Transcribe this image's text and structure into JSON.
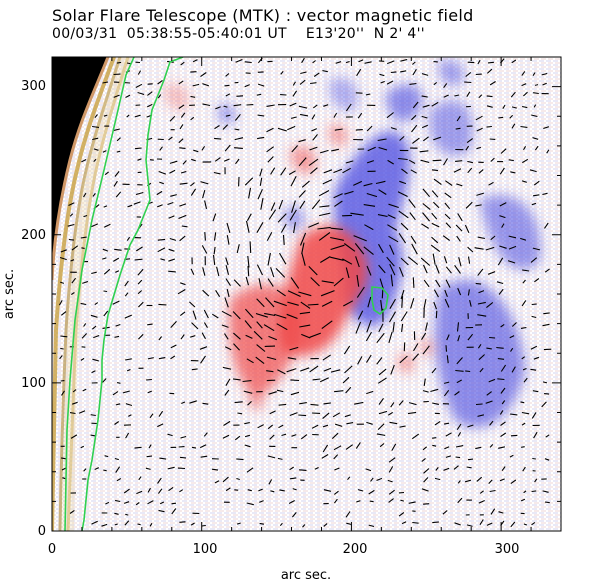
{
  "header": {
    "title": "Solar Flare Telescope (MTK) : vector magnetic field",
    "date": "00/03/31",
    "time_range": "05:38:55-05:40:01 UT",
    "coordinates": "E13'20''  N 2' 4''"
  },
  "plot": {
    "x_axis": {
      "label": "arc sec.",
      "range": [
        0,
        340
      ],
      "ticks": [
        "0",
        "100",
        "200",
        "300"
      ]
    },
    "y_axis": {
      "label": "arc sec.",
      "range": [
        0,
        320
      ],
      "ticks": [
        "0",
        "100",
        "200",
        "300"
      ]
    },
    "colors": {
      "positive_polarity": "#f05050",
      "negative_polarity": "#4848e0",
      "horizontal_field_vectors": "#000000",
      "limb_disk": "#000000",
      "limb_contours": "#c8a040",
      "neutral_line": "#30d050"
    }
  }
}
